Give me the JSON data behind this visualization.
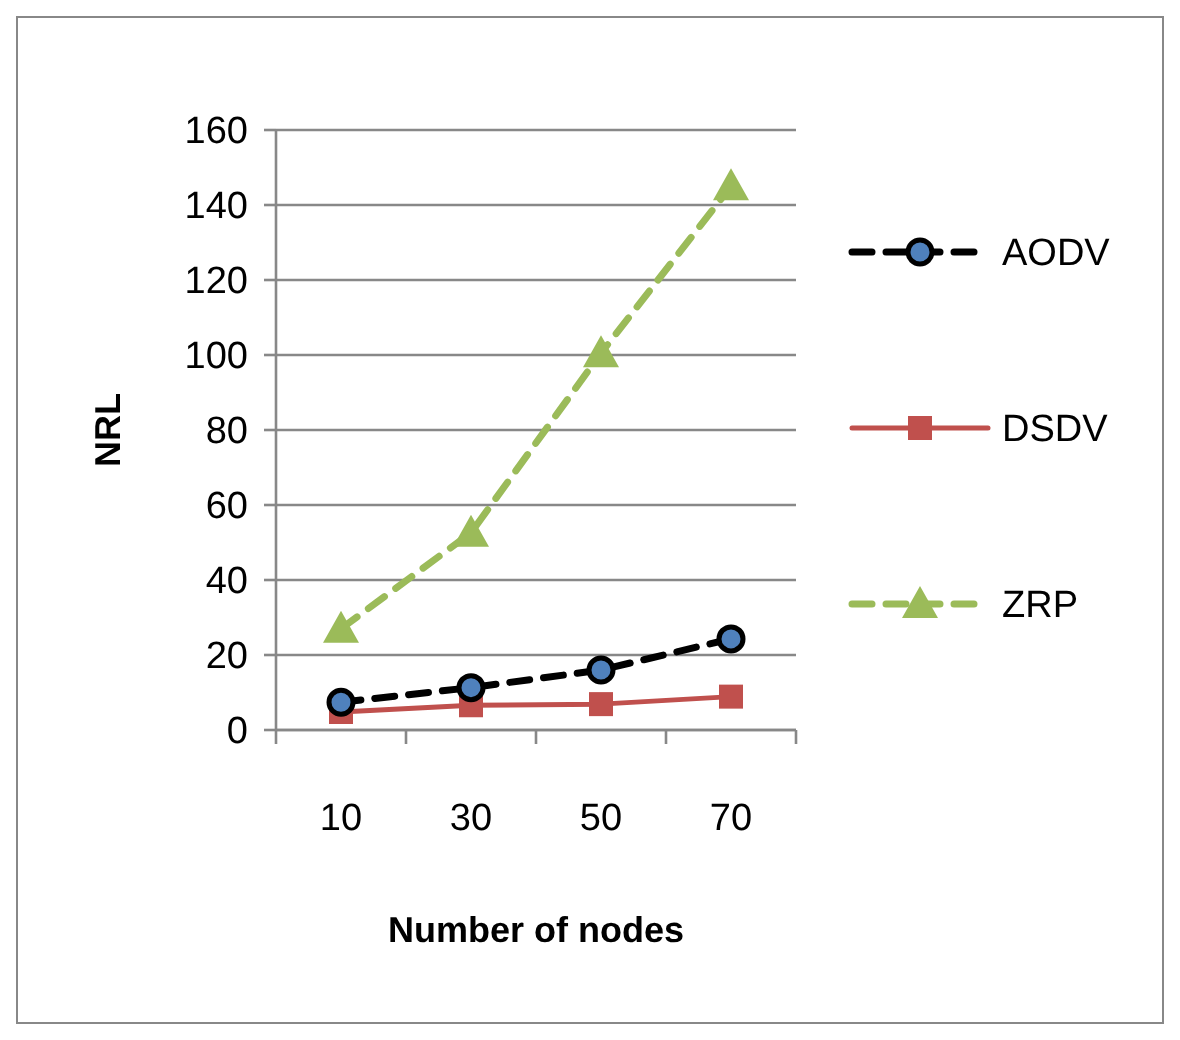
{
  "chart_data": {
    "type": "line",
    "xlabel": "Number of nodes",
    "ylabel": "NRL",
    "categories": [
      "10",
      "30",
      "50",
      "70"
    ],
    "series": [
      {
        "name": "AODV",
        "color": "#000000",
        "values": [
          7.4,
          11.3,
          16,
          24.3
        ],
        "marker": "circle",
        "line_style": "dashed"
      },
      {
        "name": "DSDV",
        "color": "#c0504d",
        "values": [
          4.8,
          6.6,
          6.9,
          8.9
        ],
        "marker": "square",
        "line_style": "solid"
      },
      {
        "name": "ZRP",
        "color": "#9bbb59",
        "values": [
          27,
          52.6,
          100.5,
          145
        ],
        "marker": "triangle",
        "line_style": "dashed"
      }
    ],
    "ylim": [
      0,
      160
    ],
    "yticks": [
      0,
      20,
      40,
      60,
      80,
      100,
      120,
      140,
      160
    ],
    "grid": "y",
    "legend": "right"
  }
}
